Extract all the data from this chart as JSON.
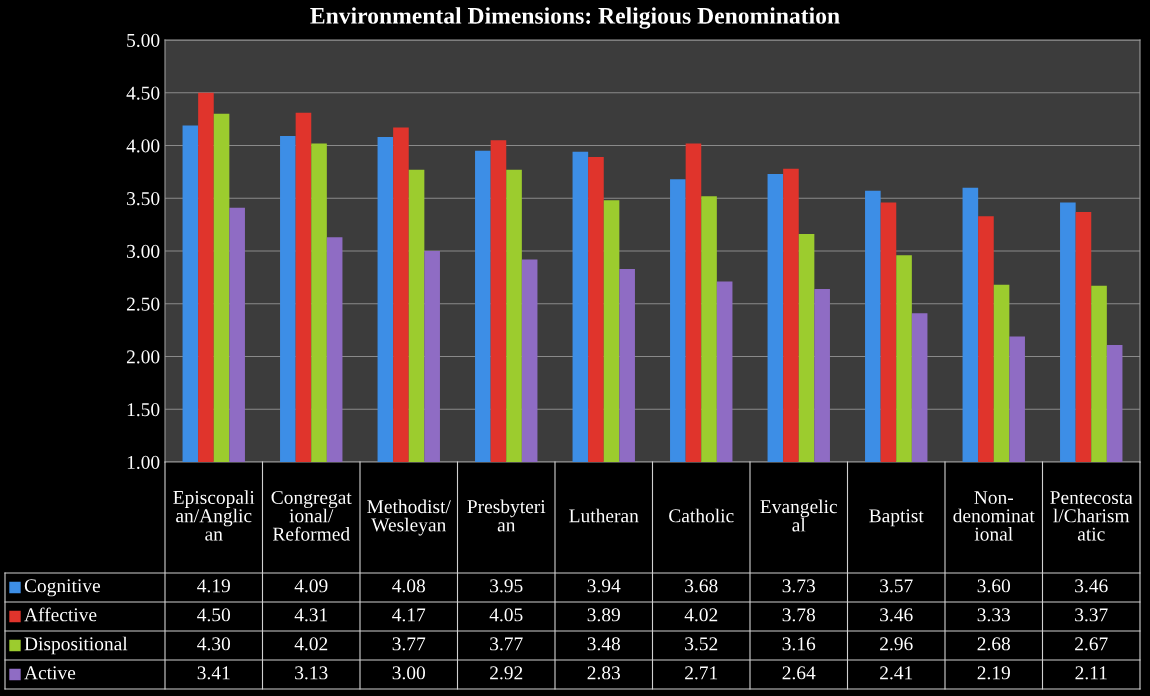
{
  "chart_data": {
    "type": "bar",
    "title": "Environmental Dimensions: Religious Denomination",
    "categories": [
      "Episcopali\nan/Anglic\nan",
      "Congregat\nional/\nReformed",
      "Methodist/\nWesleyan",
      "Presbyteri\nan",
      "Lutheran",
      "Catholic",
      "Evangelic\nal",
      "Baptist",
      "Non-\ndenominat\nional",
      "Pentecosta\nl/Charism\natic"
    ],
    "series": [
      {
        "name": "Cognitive",
        "color": "#3d8ee6",
        "values": [
          4.19,
          4.09,
          4.08,
          3.95,
          3.94,
          3.68,
          3.73,
          3.57,
          3.6,
          3.46
        ],
        "value_labels": [
          "4.19",
          "4.09",
          "4.08",
          "3.95",
          "3.94",
          "3.68",
          "3.73",
          "3.57",
          "3.60",
          "3.46"
        ]
      },
      {
        "name": "Affective",
        "color": "#e0342c",
        "values": [
          4.5,
          4.31,
          4.17,
          4.05,
          3.89,
          4.02,
          3.78,
          3.46,
          3.33,
          3.37
        ],
        "value_labels": [
          "4.50",
          "4.31",
          "4.17",
          "4.05",
          "3.89",
          "4.02",
          "3.78",
          "3.46",
          "3.33",
          "3.37"
        ]
      },
      {
        "name": "Dispositional",
        "color": "#9ccc2e",
        "values": [
          4.3,
          4.02,
          3.77,
          3.77,
          3.48,
          3.52,
          3.16,
          2.96,
          2.68,
          2.67
        ],
        "value_labels": [
          "4.30",
          "4.02",
          "3.77",
          "3.77",
          "3.48",
          "3.52",
          "3.16",
          "2.96",
          "2.68",
          "2.67"
        ]
      },
      {
        "name": "Active",
        "color": "#8f6cc4",
        "values": [
          3.41,
          3.13,
          3.0,
          2.92,
          2.83,
          2.71,
          2.64,
          2.41,
          2.19,
          2.11
        ],
        "value_labels": [
          "3.41",
          "3.13",
          "3.00",
          "2.92",
          "2.83",
          "2.71",
          "2.64",
          "2.41",
          "2.19",
          "2.11"
        ]
      }
    ],
    "ylim": [
      1.0,
      5.0
    ],
    "yticks": [
      {
        "value": 1.0,
        "label": "1.00"
      },
      {
        "value": 1.5,
        "label": "1.50"
      },
      {
        "value": 2.0,
        "label": "2.00"
      },
      {
        "value": 2.5,
        "label": "2.50"
      },
      {
        "value": 3.0,
        "label": "3.00"
      },
      {
        "value": 3.5,
        "label": "3.50"
      },
      {
        "value": 4.0,
        "label": "4.00"
      },
      {
        "value": 4.5,
        "label": "4.50"
      },
      {
        "value": 5.0,
        "label": "5.00"
      }
    ],
    "grid": "y",
    "legend": "bottom left"
  }
}
